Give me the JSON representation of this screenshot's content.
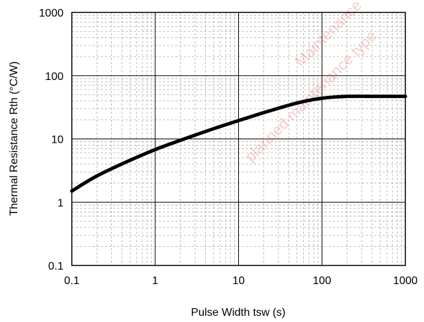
{
  "chart_data": {
    "type": "line",
    "title": "",
    "xlabel": "Pulse Width tsw (s)",
    "ylabel": "Thermal Resistance Rth (°C/W)",
    "xscale": "log",
    "yscale": "log",
    "xlim": [
      0.1,
      1000
    ],
    "ylim": [
      0.1,
      1000
    ],
    "grid": true,
    "x_ticks": [
      "0.1",
      "1",
      "10",
      "100",
      "1000"
    ],
    "y_ticks": [
      "0.1",
      "1",
      "10",
      "100",
      "1000"
    ],
    "series": [
      {
        "x": [
          0.1,
          0.2,
          0.5,
          1,
          2,
          5,
          10,
          20,
          50,
          100,
          200,
          500,
          1000
        ],
        "y": [
          1.5,
          2.6,
          4.6,
          6.8,
          9.5,
          14.5,
          19.5,
          26,
          37,
          44,
          47,
          47,
          47
        ]
      }
    ],
    "watermark": [
      "Maintenance",
      "planned maintenance type"
    ],
    "colors": {
      "line": "#000000",
      "grid_major": "#000000",
      "grid_minor": "#aaaaaa",
      "watermark": "#e86a6a"
    }
  }
}
